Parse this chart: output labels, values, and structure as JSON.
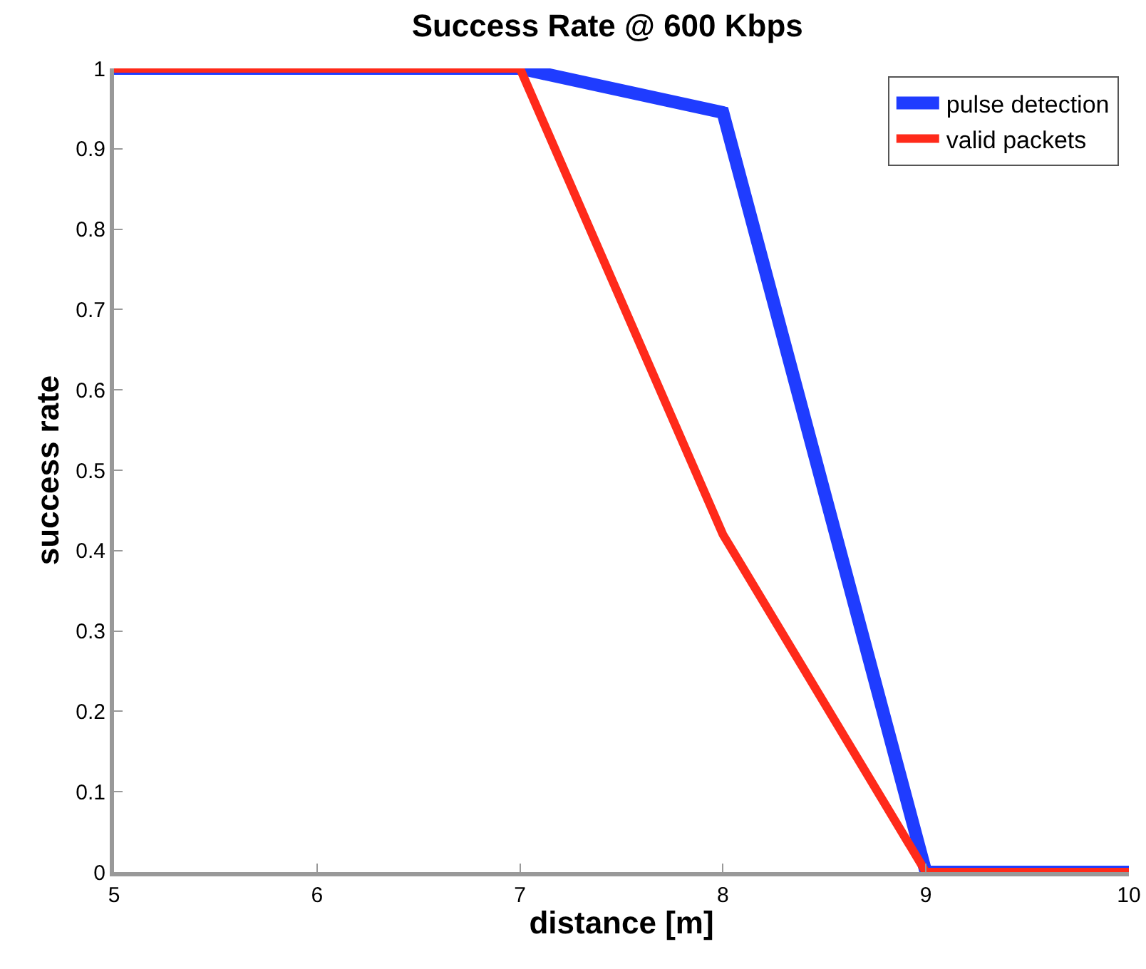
{
  "chart_data": {
    "type": "line",
    "title": "Success Rate @ 600 Kbps",
    "xlabel": "distance [m]",
    "ylabel": "success rate",
    "x": [
      5,
      6,
      7,
      8,
      9,
      10
    ],
    "series": [
      {
        "name": "pulse detection",
        "color": "#1f3cff",
        "values": [
          1,
          1,
          1,
          0.945,
          0,
          0
        ]
      },
      {
        "name": "valid packets",
        "color": "#ff2a1a",
        "values": [
          1,
          1,
          1,
          0.42,
          0,
          0
        ]
      }
    ],
    "xlim": [
      5,
      10
    ],
    "xticks": [
      5,
      6,
      7,
      8,
      9,
      10
    ],
    "ylim": [
      0,
      1
    ],
    "yticks": [
      0,
      0.1,
      0.2,
      0.3,
      0.4,
      0.5,
      0.6,
      0.7,
      0.8,
      0.9,
      1
    ],
    "grid": false,
    "legend": "top right",
    "marker": "none",
    "line_style": "solid"
  }
}
